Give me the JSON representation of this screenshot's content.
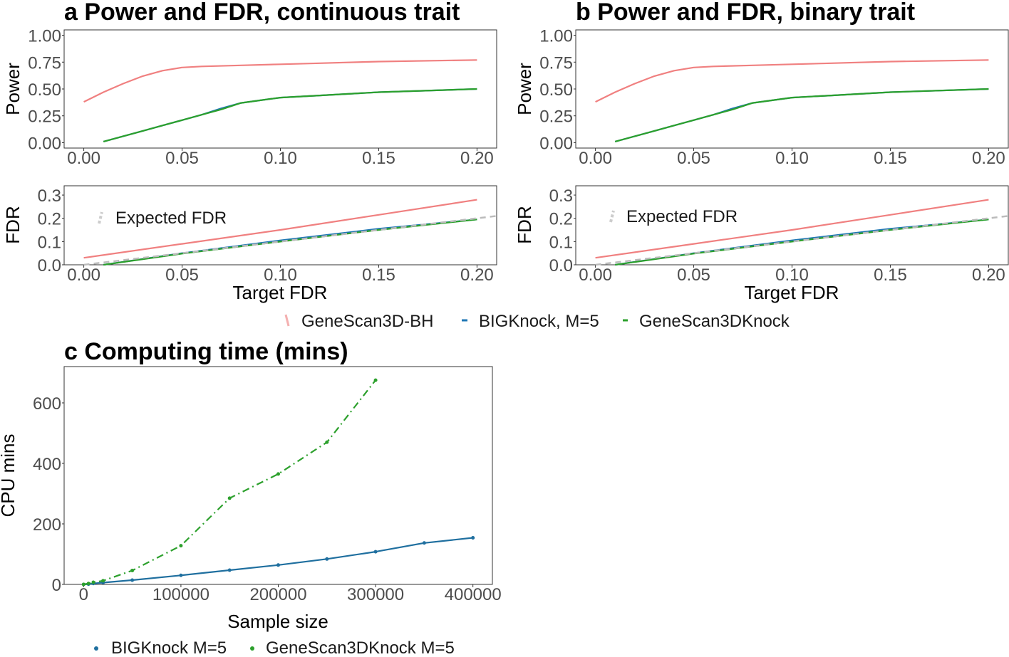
{
  "chart_data": [
    {
      "id": "a-power",
      "type": "line",
      "title": "a Power and FDR, continuous trait",
      "xlabel": "",
      "ylabel": "Power",
      "xlim": [
        -0.01,
        0.21
      ],
      "ylim": [
        -0.05,
        1.05
      ],
      "xticks": [
        "0.00",
        "0.05",
        "0.10",
        "0.15",
        "0.20"
      ],
      "yticks": [
        "0.00",
        "0.25",
        "0.50",
        "0.75",
        "1.00"
      ],
      "grid": false,
      "series": [
        {
          "color": "#f08080",
          "x": [
            0.0,
            0.01,
            0.02,
            0.03,
            0.04,
            0.05,
            0.06,
            0.08,
            0.1,
            0.12,
            0.15,
            0.2
          ],
          "y": [
            0.38,
            0.47,
            0.55,
            0.62,
            0.67,
            0.7,
            0.71,
            0.72,
            0.73,
            0.74,
            0.755,
            0.77
          ]
        },
        {
          "color": "#1f77b4",
          "x": [
            0.01,
            0.02,
            0.03,
            0.04,
            0.05,
            0.06,
            0.07,
            0.08,
            0.1,
            0.12,
            0.15,
            0.2
          ],
          "y": [
            0.01,
            0.06,
            0.11,
            0.16,
            0.21,
            0.26,
            0.32,
            0.37,
            0.42,
            0.44,
            0.47,
            0.5
          ]
        },
        {
          "color": "#2ca02c",
          "x": [
            0.01,
            0.02,
            0.03,
            0.04,
            0.05,
            0.06,
            0.07,
            0.08,
            0.1,
            0.12,
            0.15,
            0.2
          ],
          "y": [
            0.01,
            0.06,
            0.11,
            0.16,
            0.21,
            0.26,
            0.31,
            0.37,
            0.42,
            0.44,
            0.47,
            0.5
          ]
        }
      ]
    },
    {
      "id": "a-fdr",
      "type": "line",
      "xlabel": "Target FDR",
      "ylabel": "FDR",
      "xlim": [
        -0.01,
        0.21
      ],
      "ylim": [
        0.0,
        0.34
      ],
      "xticks": [
        "0.00",
        "0.05",
        "0.10",
        "0.15",
        "0.20"
      ],
      "yticks": [
        "0.0",
        "0.1",
        "0.2",
        "0.3"
      ],
      "annotation": "Expected FDR",
      "series": [
        {
          "color": "#f08080",
          "x": [
            0.0,
            0.05,
            0.1,
            0.15,
            0.2
          ],
          "y": [
            0.03,
            0.09,
            0.15,
            0.215,
            0.28
          ]
        },
        {
          "color": "#1f77b4",
          "x": [
            0.01,
            0.05,
            0.1,
            0.15,
            0.2
          ],
          "y": [
            0.0,
            0.05,
            0.105,
            0.155,
            0.195
          ]
        },
        {
          "color": "#2ca02c",
          "x": [
            0.01,
            0.05,
            0.1,
            0.15,
            0.2
          ],
          "y": [
            0.0,
            0.048,
            0.1,
            0.15,
            0.195
          ]
        },
        {
          "color": "#bbbbbb",
          "dash": true,
          "x": [
            0.0,
            0.21
          ],
          "y": [
            0.0,
            0.21
          ]
        }
      ]
    },
    {
      "id": "b-power",
      "type": "line",
      "title": "b Power and FDR, binary trait",
      "xlabel": "",
      "ylabel": "Power",
      "xlim": [
        -0.01,
        0.21
      ],
      "ylim": [
        -0.05,
        1.05
      ],
      "xticks": [
        "0.00",
        "0.05",
        "0.10",
        "0.15",
        "0.20"
      ],
      "yticks": [
        "0.00",
        "0.25",
        "0.50",
        "0.75",
        "1.00"
      ],
      "series": [
        {
          "color": "#f08080",
          "x": [
            0.0,
            0.01,
            0.02,
            0.03,
            0.04,
            0.05,
            0.06,
            0.08,
            0.1,
            0.12,
            0.15,
            0.2
          ],
          "y": [
            0.38,
            0.47,
            0.55,
            0.62,
            0.67,
            0.7,
            0.71,
            0.72,
            0.73,
            0.74,
            0.755,
            0.77
          ]
        },
        {
          "color": "#1f77b4",
          "x": [
            0.01,
            0.02,
            0.03,
            0.04,
            0.05,
            0.06,
            0.07,
            0.08,
            0.1,
            0.12,
            0.15,
            0.2
          ],
          "y": [
            0.01,
            0.06,
            0.11,
            0.16,
            0.21,
            0.26,
            0.32,
            0.37,
            0.42,
            0.44,
            0.47,
            0.5
          ]
        },
        {
          "color": "#2ca02c",
          "x": [
            0.01,
            0.02,
            0.03,
            0.04,
            0.05,
            0.06,
            0.07,
            0.08,
            0.1,
            0.12,
            0.15,
            0.2
          ],
          "y": [
            0.01,
            0.06,
            0.11,
            0.16,
            0.21,
            0.26,
            0.31,
            0.37,
            0.42,
            0.44,
            0.47,
            0.5
          ]
        }
      ]
    },
    {
      "id": "b-fdr",
      "type": "line",
      "xlabel": "Target FDR",
      "ylabel": "FDR",
      "xlim": [
        -0.01,
        0.21
      ],
      "ylim": [
        0.0,
        0.34
      ],
      "xticks": [
        "0.00",
        "0.05",
        "0.10",
        "0.15",
        "0.20"
      ],
      "yticks": [
        "0.0",
        "0.1",
        "0.2",
        "0.3"
      ],
      "annotation": "Expected FDR",
      "series": [
        {
          "color": "#f08080",
          "x": [
            0.0,
            0.05,
            0.1,
            0.15,
            0.2
          ],
          "y": [
            0.03,
            0.09,
            0.15,
            0.215,
            0.28
          ]
        },
        {
          "color": "#1f77b4",
          "x": [
            0.01,
            0.05,
            0.1,
            0.15,
            0.2
          ],
          "y": [
            0.0,
            0.05,
            0.105,
            0.155,
            0.195
          ]
        },
        {
          "color": "#2ca02c",
          "x": [
            0.01,
            0.05,
            0.1,
            0.15,
            0.2
          ],
          "y": [
            0.0,
            0.048,
            0.1,
            0.15,
            0.195
          ]
        },
        {
          "color": "#bbbbbb",
          "dash": true,
          "x": [
            0.0,
            0.21
          ],
          "y": [
            0.0,
            0.21
          ]
        }
      ]
    },
    {
      "id": "c-time",
      "type": "line",
      "title": "c Computing time (mins)",
      "xlabel": "Sample size",
      "ylabel": "CPU mins",
      "xlim": [
        -20000,
        420000
      ],
      "ylim": [
        0,
        720
      ],
      "xticks": [
        "0",
        "100000",
        "200000",
        "300000",
        "400000"
      ],
      "yticks": [
        "0",
        "200",
        "400",
        "600"
      ],
      "series": [
        {
          "name": "BIGKnock M=5",
          "color": "#1f6f9f",
          "markers": true,
          "x": [
            0,
            5000,
            10000,
            20000,
            50000,
            100000,
            150000,
            200000,
            250000,
            300000,
            350000,
            400000
          ],
          "y": [
            0,
            1,
            3,
            6,
            14,
            30,
            47,
            64,
            84,
            108,
            137,
            154
          ]
        },
        {
          "name": "GeneScan3DKnock M=5",
          "color": "#2ca02c",
          "dashdot": true,
          "markers": true,
          "x": [
            0,
            5000,
            10000,
            20000,
            50000,
            100000,
            150000,
            200000,
            250000,
            300000
          ],
          "y": [
            0,
            3,
            7,
            12,
            46,
            128,
            285,
            365,
            470,
            675
          ]
        }
      ]
    }
  ],
  "legend_top": {
    "items": [
      {
        "label": "GeneScan3D-BH",
        "color": "#f08080"
      },
      {
        "label": "BIGKnock, M=5",
        "color": "#1f77b4"
      },
      {
        "label": "GeneScan3DKnock",
        "color": "#2ca02c"
      }
    ]
  },
  "legend_bottom": {
    "items": [
      {
        "label": "BIGKnock M=5",
        "color": "#1f6f9f"
      },
      {
        "label": "GeneScan3DKnock M=5",
        "color": "#2ca02c"
      }
    ]
  }
}
